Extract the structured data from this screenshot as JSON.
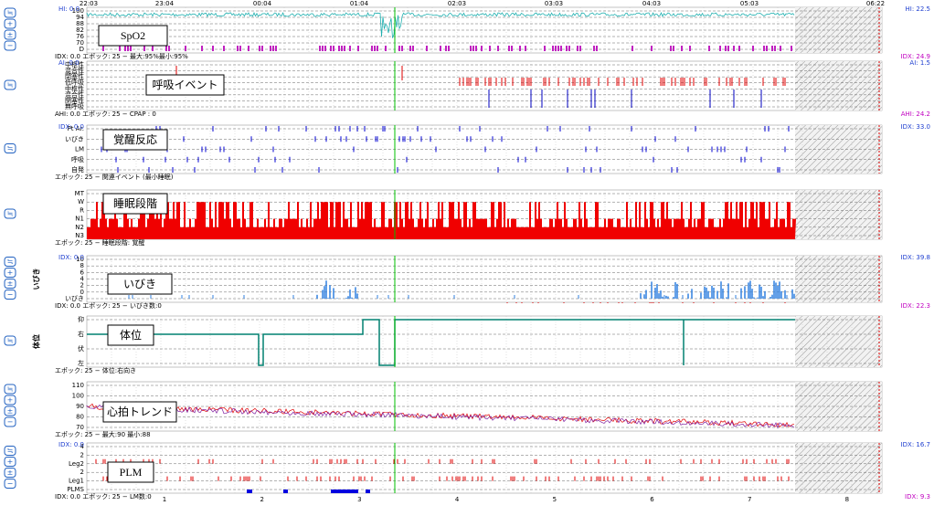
{
  "time_axis": [
    "22:03",
    "23:04",
    "00:04",
    "01:04",
    "02:03",
    "03:03",
    "04:03",
    "05:03",
    "06:22"
  ],
  "hour_axis": [
    "1",
    "2",
    "3",
    "4",
    "5",
    "6",
    "7",
    "8"
  ],
  "panels": [
    {
      "label": "SpO2",
      "ticks": [
        "100",
        "94",
        "88",
        "82",
        "76",
        "70",
        "D"
      ],
      "footer": "IDX: 0.0 エポック: 25 − 最大:95%最小:95%",
      "footer_right": "IDX: 24.9",
      "left_note": "HI: 0.0",
      "right_note": "HI: 22.5"
    },
    {
      "label": "呼吸イベント",
      "ticks": [
        "中枢性",
        "混合性",
        "閉塞性",
        "低呼吸",
        "中枢性",
        "混合性",
        "閉塞性",
        "無呼吸"
      ],
      "footer": "AHI: 0.0 エポック: 25 − CPAP : 0",
      "footer_right": "AHI: 24.2",
      "left_note": "AI: 0.0",
      "right_note": "AI: 1.5"
    },
    {
      "label": "覚醒反応",
      "ticks": [
        "Pt Ar.",
        "いびき",
        "LM",
        "呼吸",
        "自発"
      ],
      "footer": "エポック: 25 − 関連イベント (最小睡眠)",
      "left_note": "IDX: 0.0",
      "right_note": "IDX: 33.0"
    },
    {
      "label": "睡眠段階",
      "ticks": [
        "MT",
        "W",
        "R",
        "N1",
        "N2",
        "N3"
      ],
      "footer": "エポック: 25 − 睡眠段階: 覚醒"
    },
    {
      "label": "いびき",
      "side": "いびき",
      "ticks": [
        "10",
        "8",
        "6",
        "4",
        "2",
        "0",
        "いびき"
      ],
      "footer": "IDX: 0.0 エポック: 25 − いびき数:0",
      "footer_right": "IDX: 22.3",
      "left_note": "IDX: 0.0",
      "right_note": "IDX: 39.8"
    },
    {
      "label": "体位",
      "side": "体位",
      "ticks": [
        "仰",
        "右",
        "伏",
        "左"
      ],
      "footer": "エポック: 25 − 体位:右向き"
    },
    {
      "label": "心拍トレンド",
      "ticks": [
        "110",
        "100",
        "90",
        "80",
        "70"
      ],
      "footer": "エポック: 25 − 最大:90 最小:88"
    },
    {
      "label": "PLM",
      "ticks": [
        "4",
        "2",
        "Leg2",
        "2",
        "Leg1",
        "PLMS"
      ],
      "footer": "IDX: 0.0 エポック: 25 − LM数:0",
      "footer_right": "IDX: 9.3",
      "left_note": "IDX: 0.0",
      "right_note": "IDX: 16.7"
    }
  ]
}
